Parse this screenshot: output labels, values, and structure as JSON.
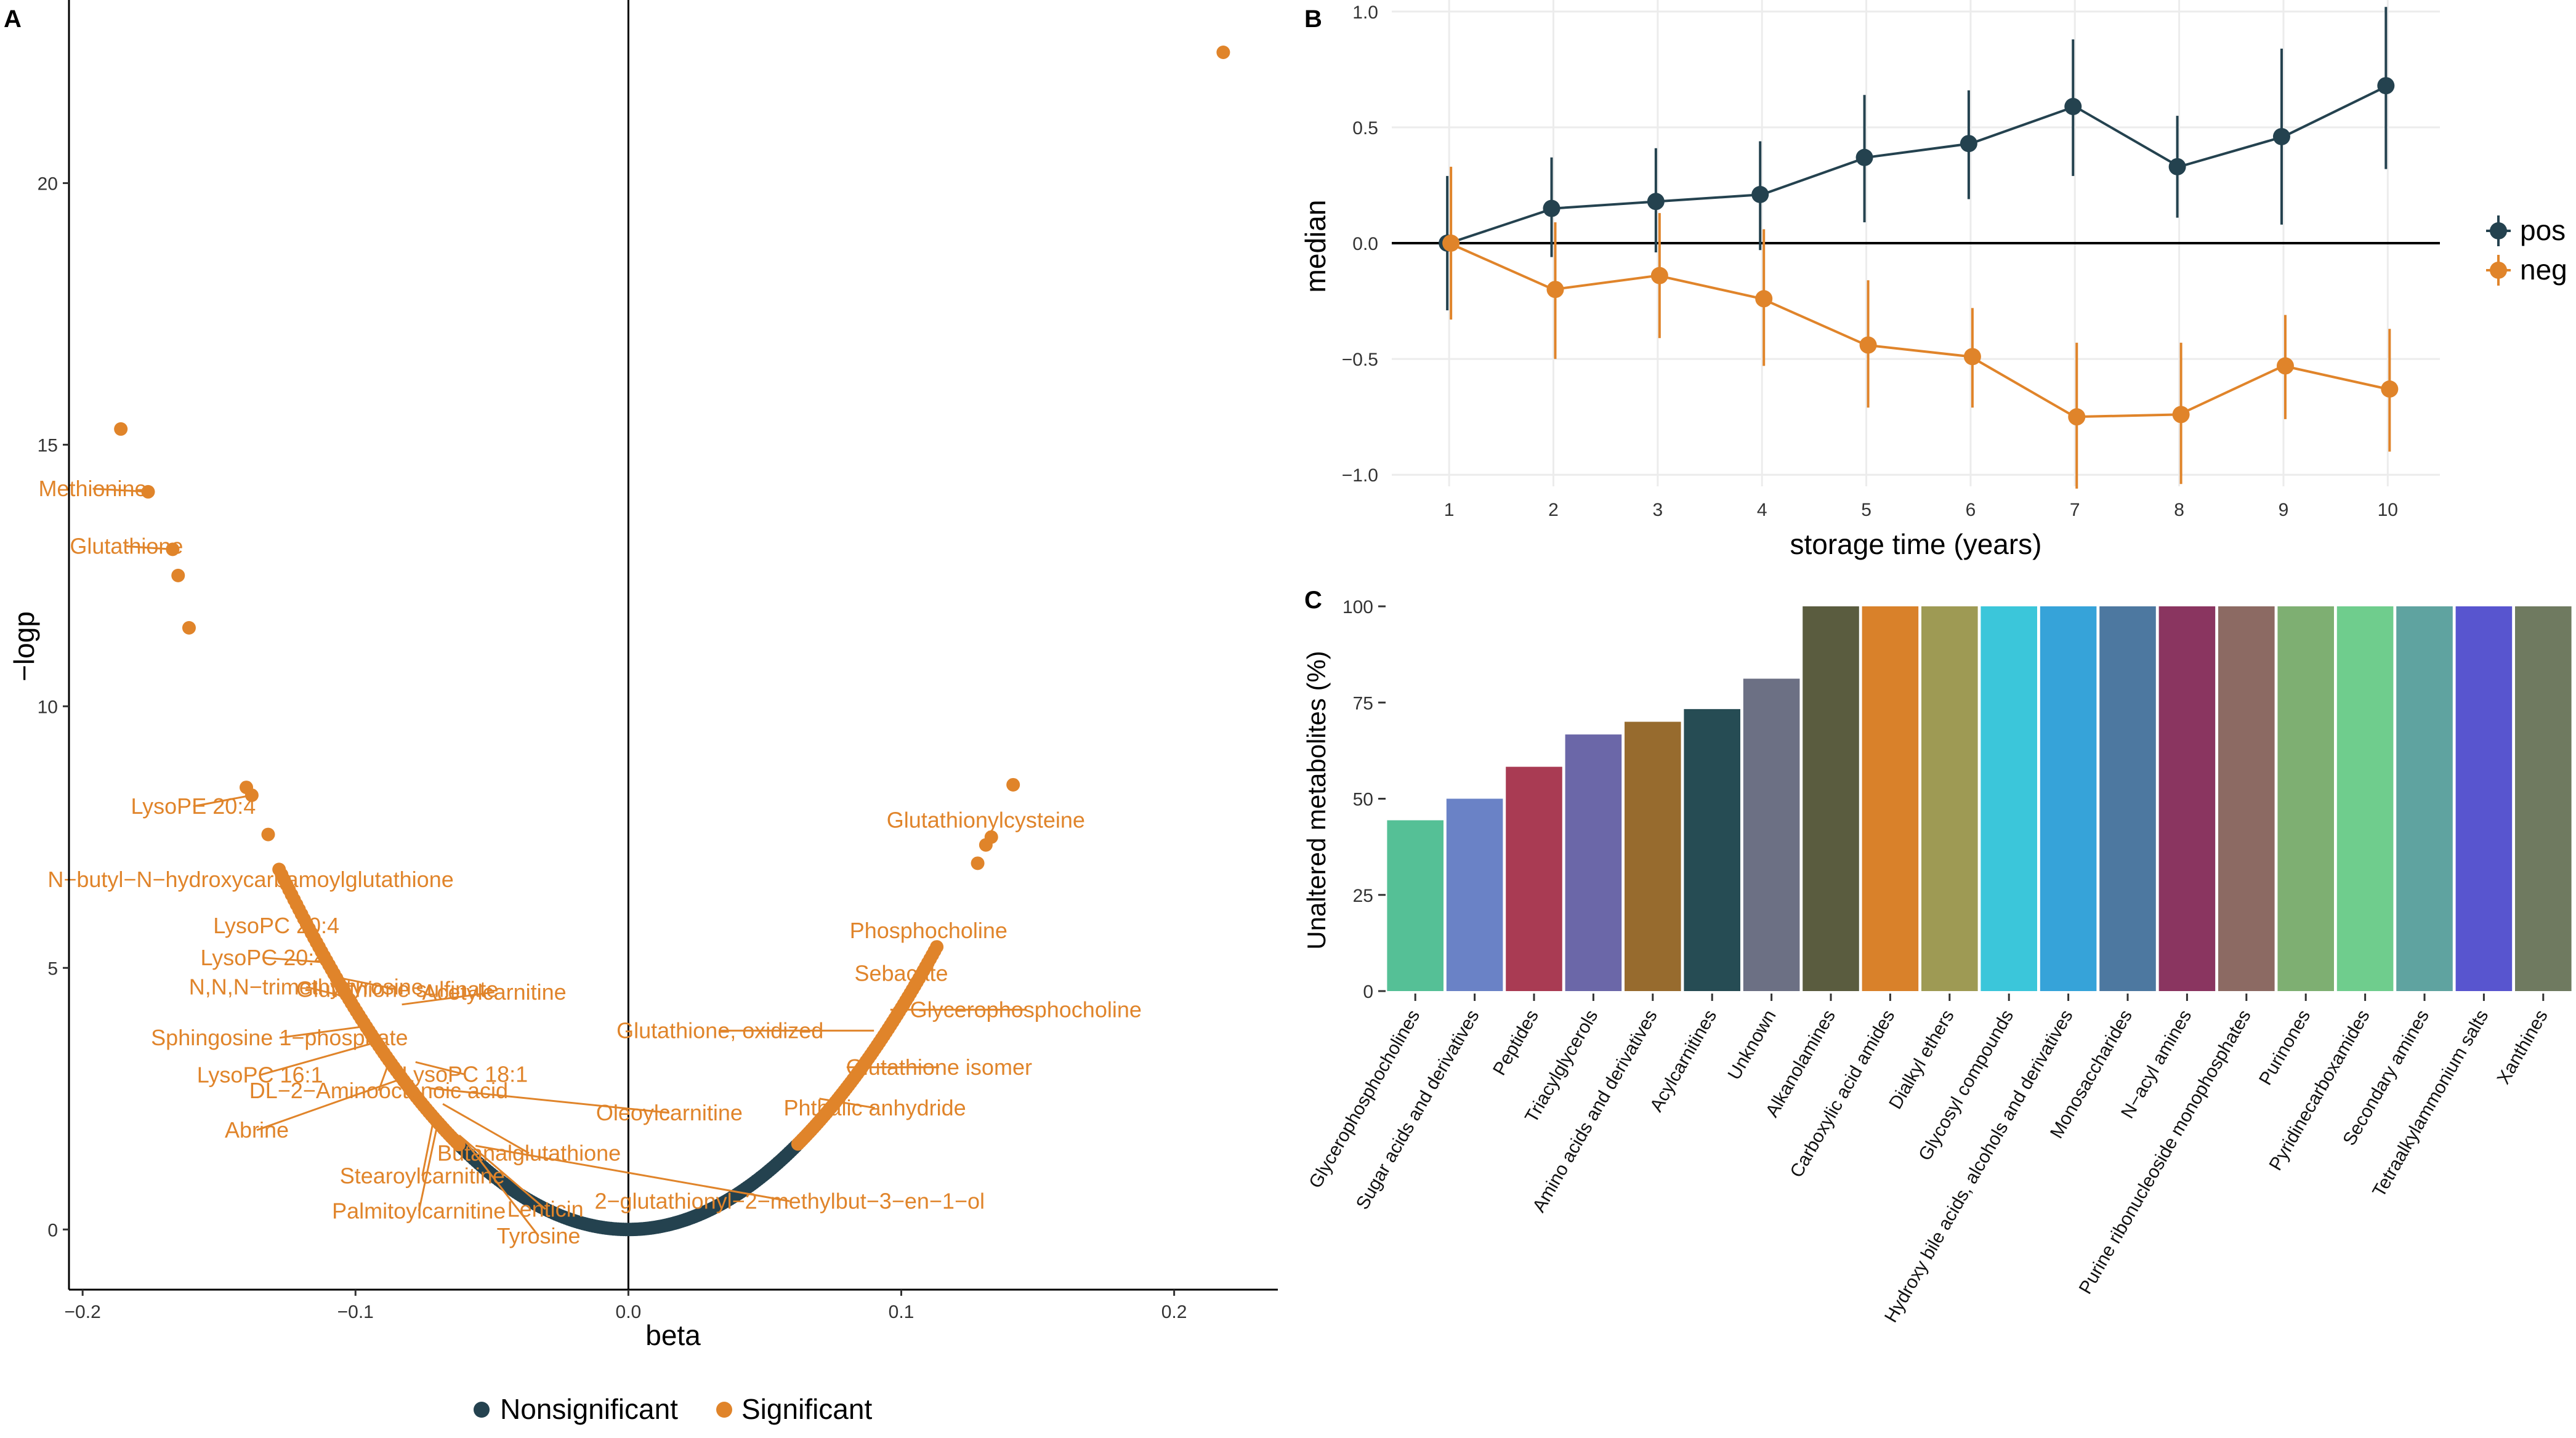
{
  "chart_data": [
    {
      "panel": "A",
      "type": "scatter",
      "panel_label": "A",
      "xlabel": "beta",
      "ylabel": "−logp",
      "xlim": [
        -0.205,
        0.238
      ],
      "ylim": [
        -1.15,
        23.5
      ],
      "x_ticks": [
        -0.2,
        -0.1,
        0.0,
        0.1,
        0.2
      ],
      "x_tick_labels": [
        "−0.2",
        "−0.1",
        "0.0",
        "0.1",
        "0.2"
      ],
      "y_ticks": [
        0,
        5,
        10,
        15,
        20
      ],
      "y_tick_labels": [
        "0",
        "5",
        "10",
        "15",
        "20"
      ],
      "colors": {
        "Nonsignificant": "#24424f",
        "Significant": "#e0842a"
      },
      "legend": {
        "position": "bottom",
        "entries": [
          "Nonsignificant",
          "Significant"
        ]
      },
      "significant_points": [
        {
          "beta": 0.218,
          "logp": 22.5
        },
        {
          "beta": -0.186,
          "logp": 15.3
        },
        {
          "beta": -0.176,
          "logp": 14.1
        },
        {
          "beta": -0.167,
          "logp": 13.0
        },
        {
          "beta": -0.165,
          "logp": 12.5
        },
        {
          "beta": -0.161,
          "logp": 11.5
        },
        {
          "beta": -0.14,
          "logp": 8.45
        },
        {
          "beta": -0.138,
          "logp": 8.3
        },
        {
          "beta": -0.132,
          "logp": 7.55
        },
        {
          "beta": 0.141,
          "logp": 8.5
        },
        {
          "beta": 0.133,
          "logp": 7.5
        },
        {
          "beta": 0.131,
          "logp": 7.35
        },
        {
          "beta": 0.128,
          "logp": 7.0
        }
      ],
      "labels": [
        {
          "text": "Methionine",
          "beta": -0.176,
          "logp": 14.1
        },
        {
          "text": "Glutathione",
          "beta": -0.167,
          "logp": 13.0
        },
        {
          "text": "LysoPE 20:4",
          "beta": -0.138,
          "logp": 8.3
        },
        {
          "text": "N−butyl−N−hydroxycarbamoylglutathione",
          "beta": -0.126,
          "logp": 6.9
        },
        {
          "text": "LysoPC 20:4",
          "beta": -0.12,
          "logp": 6.1
        },
        {
          "text": "Glutathione sulfinate",
          "beta": -0.105,
          "logp": 4.8
        },
        {
          "text": "LysoPC 20:4",
          "beta": -0.11,
          "logp": 5.1
        },
        {
          "text": "N,N,N−trimethyltyrosine",
          "beta": -0.1,
          "logp": 4.4
        },
        {
          "text": "Acetylcarnitine",
          "beta": -0.083,
          "logp": 4.3
        },
        {
          "text": "Sphingosine 1−phosphate",
          "beta": -0.094,
          "logp": 3.9
        },
        {
          "text": "LysoPC 18:1",
          "beta": -0.078,
          "logp": 3.2
        },
        {
          "text": "LysoPC 16:1",
          "beta": -0.091,
          "logp": 3.6
        },
        {
          "text": "DL−2−Aminooctanoic acid",
          "beta": -0.087,
          "logp": 3.3
        },
        {
          "text": "Oleoylcarnitine",
          "beta": -0.073,
          "logp": 2.7
        },
        {
          "text": "Abrine",
          "beta": -0.082,
          "logp": 2.9
        },
        {
          "text": "Butanalglutathione",
          "beta": -0.068,
          "logp": 2.4
        },
        {
          "text": "Stearoylcarnitine",
          "beta": -0.071,
          "logp": 2.2
        },
        {
          "text": "Palmitoylcarnitine",
          "beta": -0.07,
          "logp": 2.0
        },
        {
          "text": "Lenticin",
          "beta": -0.062,
          "logp": 1.8
        },
        {
          "text": "2−glutathionyl−2−methylbut−3−en−1−ol",
          "beta": -0.056,
          "logp": 1.6
        },
        {
          "text": "Tyrosine",
          "beta": -0.06,
          "logp": 1.7
        },
        {
          "text": "Glutathionylcysteine",
          "beta": 0.131,
          "logp": 7.35
        },
        {
          "text": "Phosphocholine",
          "beta": 0.11,
          "logp": 5.3
        },
        {
          "text": "Sebacate",
          "beta": 0.1,
          "logp": 4.6
        },
        {
          "text": "Glutathione, oxidized",
          "beta": 0.09,
          "logp": 3.8
        },
        {
          "text": "Glycerophosphocholine",
          "beta": 0.096,
          "logp": 4.2
        },
        {
          "text": "Glutathione isomer",
          "beta": 0.08,
          "logp": 3.1
        },
        {
          "text": "Phthalic anhydride",
          "beta": 0.07,
          "logp": 2.5
        }
      ]
    },
    {
      "panel": "B",
      "type": "line",
      "panel_label": "B",
      "xlabel": "storage time (years)",
      "ylabel": "median",
      "xlim": [
        0.45,
        10.5
      ],
      "ylim": [
        -1.05,
        1.05
      ],
      "x_ticks": [
        1,
        2,
        3,
        4,
        5,
        6,
        7,
        8,
        9,
        10
      ],
      "y_ticks": [
        1.0,
        0.5,
        0.0,
        -0.5,
        -1.0
      ],
      "y_tick_labels": [
        "1.0",
        "0.5",
        "0.0",
        "−0.5",
        "−1.0"
      ],
      "legend": {
        "position": "right"
      },
      "series": [
        {
          "name": "pos",
          "color": "#24424f",
          "x": [
            1,
            2,
            3,
            4,
            5,
            6,
            7,
            8,
            9,
            10
          ],
          "values": [
            0.0,
            0.15,
            0.18,
            0.21,
            0.37,
            0.43,
            0.59,
            0.33,
            0.46,
            0.68
          ],
          "upper": [
            0.29,
            0.37,
            0.41,
            0.44,
            0.64,
            0.66,
            0.88,
            0.55,
            0.84,
            1.02
          ],
          "lower": [
            -0.29,
            -0.06,
            -0.04,
            -0.03,
            0.09,
            0.19,
            0.29,
            0.11,
            0.08,
            0.32
          ]
        },
        {
          "name": "neg",
          "color": "#e0842a",
          "x": [
            1,
            2,
            3,
            4,
            5,
            6,
            7,
            8,
            9,
            10
          ],
          "values": [
            0.0,
            -0.2,
            -0.14,
            -0.24,
            -0.44,
            -0.49,
            -0.75,
            -0.74,
            -0.53,
            -0.63
          ],
          "upper": [
            0.33,
            0.09,
            0.13,
            0.06,
            -0.16,
            -0.28,
            -0.43,
            -0.43,
            -0.31,
            -0.37
          ],
          "lower": [
            -0.33,
            -0.5,
            -0.41,
            -0.53,
            -0.71,
            -0.71,
            -1.06,
            -1.04,
            -0.76,
            -0.9
          ]
        }
      ]
    },
    {
      "panel": "C",
      "type": "bar",
      "panel_label": "C",
      "xlabel": "",
      "ylabel": "Unaltered metabolites (%)",
      "ylim": [
        0,
        100
      ],
      "y_ticks": [
        0,
        25,
        50,
        75,
        100
      ],
      "categories": [
        "Glycerophosphocholines",
        "Sugar acids and derivatives",
        "Peptides",
        "Triacylglycerols",
        "Amino acids and derivatives",
        "Acylcarnitines",
        "Unknown",
        "Alkanolamines",
        "Carboxylic acid amides",
        "Dialkyl ethers",
        "Glycosyl compounds",
        "Hydroxy bile acids, alcohols and derivatives",
        "Monosaccharides",
        "N−acyl amines",
        "Purine ribonucleoside monophosphates",
        "Purinones",
        "Pyridinecarboxamides",
        "Secondary amines",
        "Tetraalkylammonium salts",
        "Xanthines"
      ],
      "values": [
        44.4,
        50,
        58.3,
        66.7,
        70,
        73.3,
        81.2,
        100,
        100,
        100,
        100,
        100,
        100,
        100,
        100,
        100,
        100,
        100,
        100,
        100
      ],
      "colors": [
        "#55c096",
        "#6a82c6",
        "#a93b53",
        "#6b67a8",
        "#976b2e",
        "#264c54",
        "#6c7084",
        "#5a5c3f",
        "#d9812a",
        "#9e9a54",
        "#3bc6da",
        "#36a3d9",
        "#4d78a0",
        "#8a3560",
        "#8c6a63",
        "#7eaf72",
        "#6fcd8d",
        "#5fa3a0",
        "#5855cf",
        "#6f7a60"
      ]
    }
  ]
}
